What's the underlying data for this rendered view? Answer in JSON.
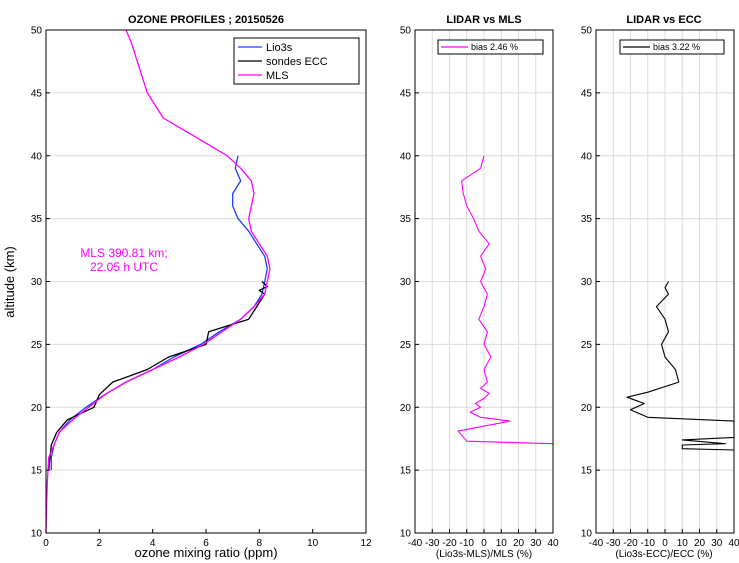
{
  "chart_data": [
    {
      "type": "line",
      "title": "OZONE PROFILES ; 20150526",
      "xlabel": "ozone mixing ratio (ppm)",
      "ylabel": "altitude (km)",
      "xlim": [
        0,
        12
      ],
      "ylim": [
        10,
        50
      ],
      "xticks": [
        0,
        2,
        4,
        6,
        8,
        10,
        12
      ],
      "yticks": [
        10,
        15,
        20,
        25,
        30,
        35,
        40,
        45,
        50
      ],
      "grid": "horizontal",
      "legend": "top-right",
      "annotation": [
        "MLS 390.81 km;",
        "22.05 h UTC"
      ],
      "series": [
        {
          "name": "Lio3s",
          "color": "#1f3cff",
          "points": [
            [
              0.2,
              15
            ],
            [
              0.2,
              16
            ],
            [
              0.3,
              17
            ],
            [
              0.5,
              18
            ],
            [
              0.9,
              19
            ],
            [
              1.5,
              20
            ],
            [
              2.2,
              21
            ],
            [
              3.0,
              22
            ],
            [
              4.0,
              23
            ],
            [
              4.8,
              24
            ],
            [
              5.8,
              25
            ],
            [
              6.5,
              26
            ],
            [
              7.3,
              27
            ],
            [
              7.8,
              28
            ],
            [
              8.1,
              29
            ],
            [
              8.2,
              30
            ],
            [
              8.3,
              31
            ],
            [
              8.2,
              32
            ],
            [
              7.9,
              33
            ],
            [
              7.6,
              34
            ],
            [
              7.2,
              35
            ],
            [
              7.0,
              36
            ],
            [
              7.0,
              37
            ],
            [
              7.3,
              38
            ],
            [
              7.1,
              39
            ],
            [
              7.2,
              40
            ]
          ]
        },
        {
          "name": "sondes ECC",
          "color": "#000000",
          "points": [
            [
              0.1,
              15
            ],
            [
              0.15,
              16
            ],
            [
              0.2,
              17
            ],
            [
              0.4,
              18
            ],
            [
              0.8,
              19
            ],
            [
              1.8,
              20
            ],
            [
              2.0,
              21
            ],
            [
              2.5,
              22
            ],
            [
              3.8,
              23
            ],
            [
              4.6,
              24
            ],
            [
              6.0,
              25
            ],
            [
              6.1,
              26
            ],
            [
              7.6,
              27
            ],
            [
              7.9,
              28
            ],
            [
              8.2,
              29
            ],
            [
              8.0,
              29.3
            ],
            [
              8.3,
              29.6
            ],
            [
              8.1,
              30
            ]
          ]
        },
        {
          "name": "MLS",
          "color": "#ff00ff",
          "points": [
            [
              0,
              10
            ],
            [
              0.02,
              12
            ],
            [
              0.05,
              14
            ],
            [
              0.1,
              16
            ],
            [
              0.3,
              17
            ],
            [
              0.5,
              18
            ],
            [
              1.0,
              19
            ],
            [
              1.6,
              20
            ],
            [
              2.2,
              21
            ],
            [
              3.0,
              22
            ],
            [
              4.0,
              23
            ],
            [
              5.0,
              24
            ],
            [
              5.9,
              25
            ],
            [
              6.6,
              26
            ],
            [
              7.3,
              27
            ],
            [
              7.8,
              28
            ],
            [
              8.2,
              29
            ],
            [
              8.3,
              30
            ],
            [
              8.4,
              31
            ],
            [
              8.3,
              32
            ],
            [
              8.0,
              33
            ],
            [
              7.7,
              34
            ],
            [
              7.6,
              35
            ],
            [
              7.7,
              36
            ],
            [
              7.8,
              37
            ],
            [
              7.7,
              38
            ],
            [
              7.3,
              39
            ],
            [
              6.8,
              40
            ],
            [
              6.0,
              41
            ],
            [
              5.2,
              42
            ],
            [
              4.4,
              43
            ],
            [
              3.8,
              45
            ],
            [
              3.5,
              47
            ],
            [
              3.2,
              49
            ],
            [
              3.0,
              50
            ]
          ]
        }
      ]
    },
    {
      "type": "line",
      "title": "LIDAR vs MLS",
      "xlabel": "(Lio3s-MLS)/MLS (%)",
      "xlim": [
        -40,
        40
      ],
      "ylim": [
        10,
        50
      ],
      "xticks": [
        -40,
        -30,
        -20,
        -10,
        0,
        10,
        20,
        30,
        40
      ],
      "yticks": [
        10,
        15,
        20,
        25,
        30,
        35,
        40,
        45,
        50
      ],
      "grid": "both",
      "legend": "top",
      "series": [
        {
          "name": "bias 2.46 %",
          "color": "#ff00ff",
          "points": [
            [
              40,
              17.1
            ],
            [
              -10,
              17.3
            ],
            [
              -15,
              18.1
            ],
            [
              15,
              18.9
            ],
            [
              -2,
              19.2
            ],
            [
              -8,
              19.6
            ],
            [
              -2,
              20
            ],
            [
              -5,
              20.3
            ],
            [
              0,
              20.7
            ],
            [
              3,
              21.1
            ],
            [
              -2,
              21.5
            ],
            [
              2,
              22
            ],
            [
              0,
              23
            ],
            [
              4,
              24
            ],
            [
              0,
              25
            ],
            [
              2,
              26
            ],
            [
              -3,
              27
            ],
            [
              0,
              28
            ],
            [
              2,
              29
            ],
            [
              -2,
              30
            ],
            [
              1,
              31
            ],
            [
              -2,
              32
            ],
            [
              3,
              33
            ],
            [
              -3,
              34
            ],
            [
              -6,
              35
            ],
            [
              -10,
              36
            ],
            [
              -12,
              37
            ],
            [
              -13,
              38
            ],
            [
              -2,
              39
            ],
            [
              0,
              40
            ]
          ]
        }
      ]
    },
    {
      "type": "line",
      "title": "LIDAR vs ECC",
      "xlabel": "(Lio3s-ECC)/ECC (%)",
      "xlim": [
        -40,
        40
      ],
      "ylim": [
        10,
        50
      ],
      "xticks": [
        -40,
        -30,
        -20,
        -10,
        0,
        10,
        20,
        30,
        40
      ],
      "yticks": [
        10,
        15,
        20,
        25,
        30,
        35,
        40,
        45,
        50
      ],
      "grid": "both",
      "legend": "top",
      "series": [
        {
          "name": "bias 3.22 %",
          "color": "#000000",
          "points": [
            [
              40,
              16.6
            ],
            [
              10,
              16.7
            ],
            [
              10,
              17.0
            ],
            [
              35,
              17.1
            ],
            [
              10,
              17.4
            ],
            [
              40,
              17.6
            ],
            [
              40,
              18.9
            ],
            [
              -10,
              19.2
            ],
            [
              -20,
              19.8
            ],
            [
              -12,
              20.3
            ],
            [
              -22,
              20.8
            ],
            [
              -10,
              21.2
            ],
            [
              8,
              22
            ],
            [
              6,
              23
            ],
            [
              0,
              24
            ],
            [
              -2,
              25
            ],
            [
              2,
              26
            ],
            [
              0,
              27
            ],
            [
              -5,
              28
            ],
            [
              2,
              29
            ],
            [
              0,
              29.5
            ],
            [
              2,
              30
            ]
          ]
        }
      ]
    }
  ]
}
